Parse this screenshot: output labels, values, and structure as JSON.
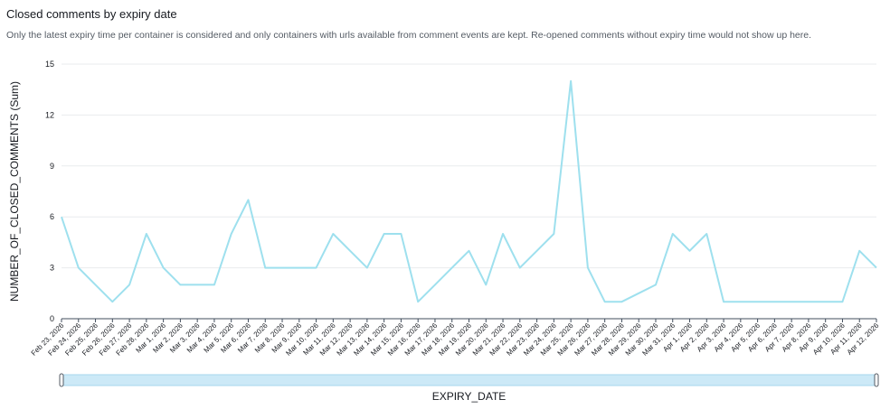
{
  "header": {
    "title": "Closed comments by expiry date",
    "subtitle": "Only the latest expiry time per container is considered and only containers with urls available from comment events are kept. Re-opened comments without expiry time would not show up here."
  },
  "chart_data": {
    "type": "line",
    "title": "Closed comments by expiry date",
    "xlabel": "EXPIRY_DATE",
    "ylabel": "NUMBER_OF_CLOSED_COMMENTS (Sum)",
    "ylim": [
      0,
      15
    ],
    "yticks": [
      0,
      3,
      6,
      9,
      12,
      15
    ],
    "grid": true,
    "series_color": "#9ee0ee",
    "categories": [
      "Feb 23, 2026",
      "Feb 24, 2026",
      "Feb 25, 2026",
      "Feb 26, 2026",
      "Feb 27, 2026",
      "Feb 28, 2026",
      "Mar 1, 2026",
      "Mar 2, 2026",
      "Mar 3, 2026",
      "Mar 4, 2026",
      "Mar 5, 2026",
      "Mar 6, 2026",
      "Mar 7, 2026",
      "Mar 8, 2026",
      "Mar 9, 2026",
      "Mar 10, 2026",
      "Mar 11, 2026",
      "Mar 12, 2026",
      "Mar 13, 2026",
      "Mar 14, 2026",
      "Mar 15, 2026",
      "Mar 16, 2026",
      "Mar 17, 2026",
      "Mar 18, 2026",
      "Mar 19, 2026",
      "Mar 20, 2026",
      "Mar 21, 2026",
      "Mar 22, 2026",
      "Mar 23, 2026",
      "Mar 24, 2026",
      "Mar 25, 2026",
      "Mar 26, 2026",
      "Mar 27, 2026",
      "Mar 28, 2026",
      "Mar 29, 2026",
      "Mar 30, 2026",
      "Mar 31, 2026",
      "Apr 1, 2026",
      "Apr 2, 2026",
      "Apr 3, 2026",
      "Apr 4, 2026",
      "Apr 5, 2026",
      "Apr 6, 2026",
      "Apr 7, 2026",
      "Apr 8, 2026",
      "Apr 9, 2026",
      "Apr 10, 2026",
      "Apr 11, 2026",
      "Apr 12, 2026"
    ],
    "series": [
      {
        "values": [
          6,
          3,
          2,
          1,
          2,
          5,
          3,
          2,
          2,
          2,
          5,
          7,
          3,
          3,
          3,
          3,
          5,
          4,
          3,
          5,
          5,
          1,
          2,
          3,
          4,
          2,
          5,
          3,
          4,
          5,
          14,
          3,
          1,
          1,
          1.5,
          2,
          5,
          4,
          5,
          1,
          1,
          1,
          1,
          1,
          1,
          1,
          1,
          4,
          3
        ]
      }
    ]
  }
}
